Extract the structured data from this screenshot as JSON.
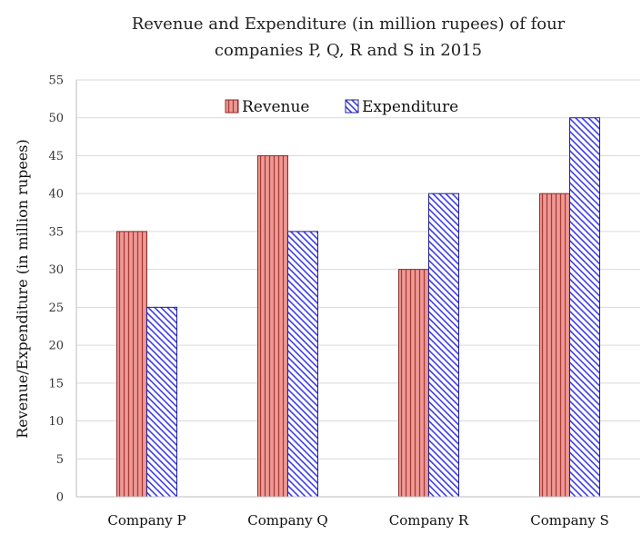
{
  "chart_data": {
    "type": "bar",
    "title_lines": [
      "Revenue and Expenditure (in million rupees) of four",
      "companies P, Q, R and S in 2015"
    ],
    "ylabel": "Revenue/Expenditure (in million rupees)",
    "xlabel": "",
    "categories": [
      "Company P",
      "Company Q",
      "Company R",
      "Company S"
    ],
    "series": [
      {
        "name": "Revenue",
        "values": [
          35,
          45,
          30,
          40
        ],
        "color": "#e8807c",
        "stroke": "#8a2b27"
      },
      {
        "name": "Expenditure",
        "values": [
          25,
          35,
          40,
          50
        ],
        "color": "#5b5bf0",
        "stroke": "#1f1f8f"
      }
    ],
    "ylim": [
      0,
      55
    ],
    "yticks": [
      0,
      5,
      10,
      15,
      20,
      25,
      30,
      35,
      40,
      45,
      50,
      55
    ],
    "grid": true,
    "legend_position": "top-center"
  }
}
